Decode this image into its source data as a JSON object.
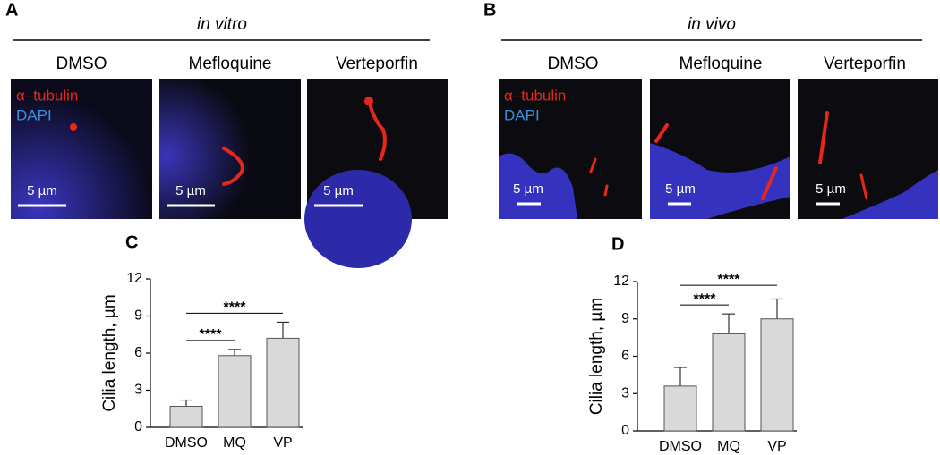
{
  "panels": [
    {
      "label": "A",
      "condition": "in vitro",
      "columns": [
        "DMSO",
        "Mefloquine",
        "Verteporfin"
      ],
      "stain_labels": [
        "α–tubulin",
        "DAPI"
      ],
      "scale_bar": "5 µm"
    },
    {
      "label": "B",
      "condition": "in vivo",
      "columns": [
        "DMSO",
        "Mefloquine",
        "Verteporfin"
      ],
      "stain_labels": [
        "α–tubulin",
        "DAPI"
      ],
      "scale_bar": "5 µm"
    }
  ],
  "chart_data": [
    {
      "type": "bar",
      "label": "C",
      "ylabel": "Cilia length, µm",
      "categories": [
        "DMSO",
        "MQ",
        "VP"
      ],
      "values": [
        1.7,
        5.8,
        7.2
      ],
      "errors": [
        0.5,
        0.5,
        1.3
      ],
      "color": "#d9d9d9",
      "ylim": [
        0,
        12
      ],
      "yticks": [
        0,
        3,
        6,
        9,
        12
      ],
      "annotations": [
        {
          "text": "****",
          "between": [
            "DMSO",
            "MQ"
          ]
        },
        {
          "text": "****",
          "between": [
            "DMSO",
            "VP"
          ]
        }
      ]
    },
    {
      "type": "bar",
      "label": "D",
      "ylabel": "Cilia length, µm",
      "categories": [
        "DMSO",
        "MQ",
        "VP"
      ],
      "values": [
        3.6,
        7.8,
        9.0
      ],
      "errors": [
        1.5,
        1.6,
        1.6
      ],
      "color": "#d9d9d9",
      "ylim": [
        0,
        12
      ],
      "yticks": [
        0,
        3,
        6,
        9,
        12
      ],
      "annotations": [
        {
          "text": "****",
          "between": [
            "DMSO",
            "MQ"
          ]
        },
        {
          "text": "****",
          "between": [
            "DMSO",
            "VP"
          ]
        }
      ]
    }
  ]
}
